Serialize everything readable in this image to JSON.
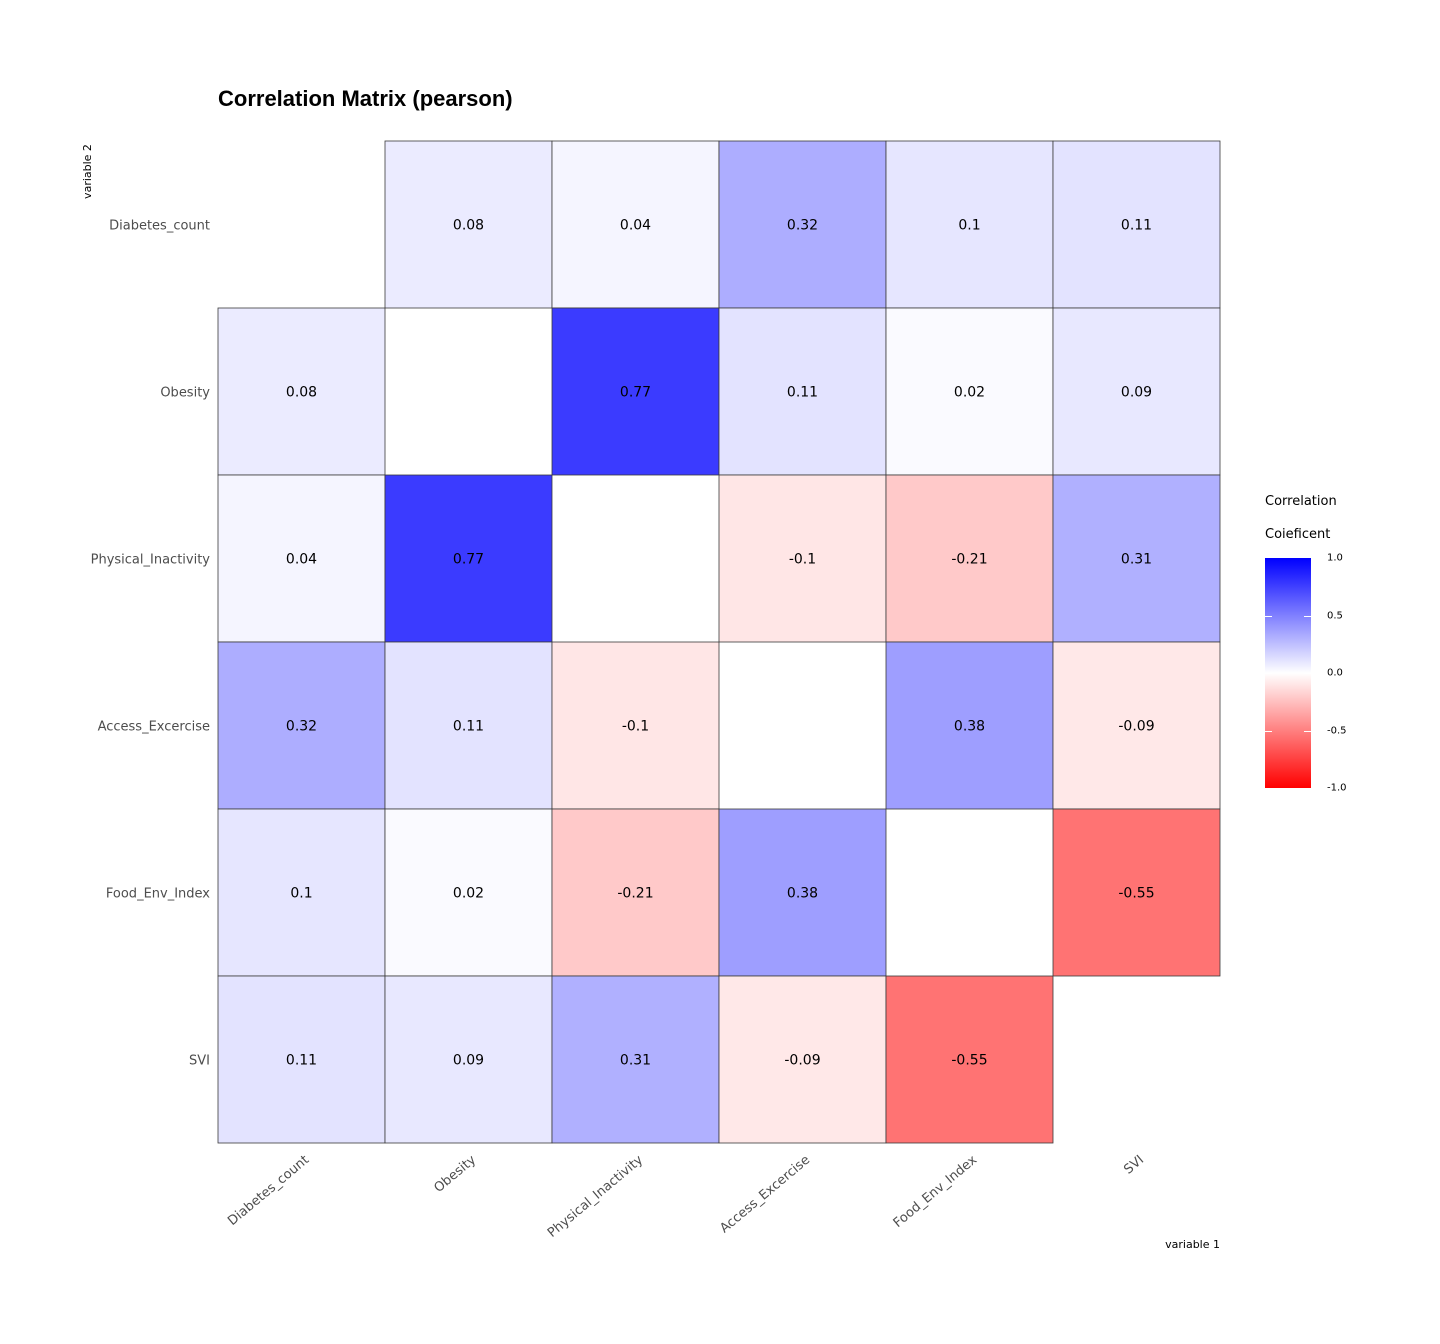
{
  "chart_data": {
    "type": "heatmap",
    "title": "Correlation Matrix (pearson)",
    "xlabel": "variable 1",
    "ylabel": "variable 2",
    "variables": [
      "Diabetes_count",
      "Obesity",
      "Physical_Inactivity",
      "Access_Excercise",
      "Food_Env_Index",
      "SVI"
    ],
    "matrix": [
      [
        null,
        0.08,
        0.04,
        0.32,
        0.1,
        0.11
      ],
      [
        0.08,
        null,
        0.77,
        0.11,
        0.02,
        0.09
      ],
      [
        0.04,
        0.77,
        null,
        -0.1,
        -0.21,
        0.31
      ],
      [
        0.32,
        0.11,
        -0.1,
        null,
        0.38,
        -0.09
      ],
      [
        0.1,
        0.02,
        -0.21,
        0.38,
        null,
        -0.55
      ],
      [
        0.11,
        0.09,
        0.31,
        -0.09,
        -0.55,
        null
      ]
    ],
    "color_scale": {
      "low": "#ff0000",
      "mid": "#ffffff",
      "high": "#0000ff",
      "range": [
        -1,
        1
      ]
    },
    "legend": {
      "title_line1": "Correlation",
      "title_line2": "Coieficent",
      "ticks": [
        "1.0",
        "0.5",
        "0.0",
        "-0.5",
        "-1.0"
      ],
      "tick_values": [
        1,
        0.5,
        0,
        -0.5,
        -1
      ],
      "position": "right"
    },
    "grid": false
  }
}
